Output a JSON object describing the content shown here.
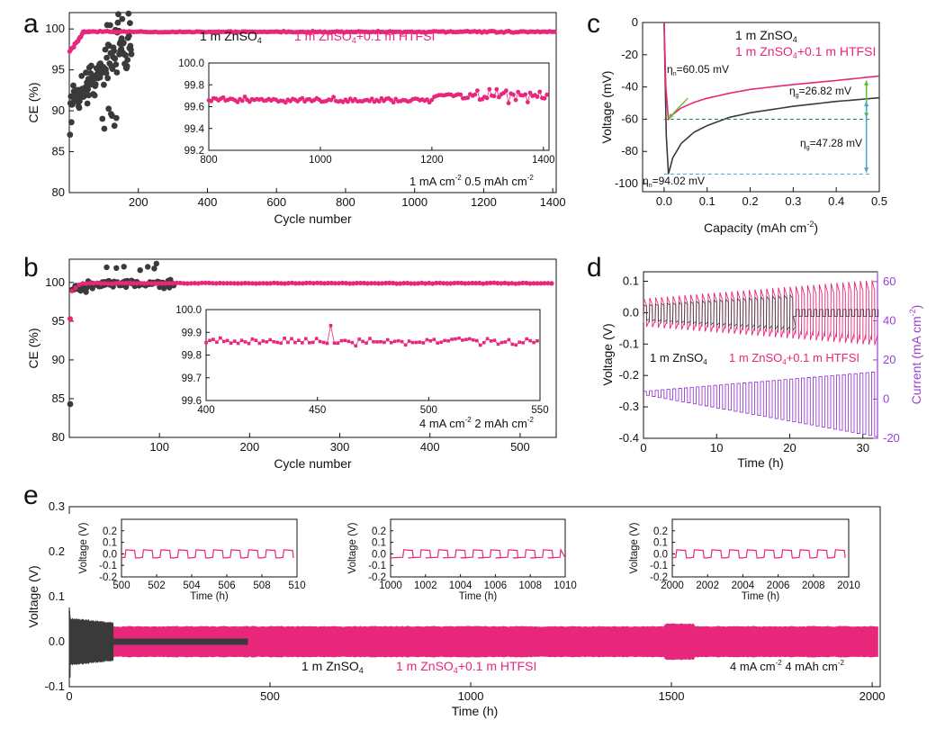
{
  "panels": {
    "a": {
      "label": "a"
    },
    "b": {
      "label": "b"
    },
    "c": {
      "label": "c"
    },
    "d": {
      "label": "d"
    },
    "e": {
      "label": "e"
    }
  },
  "colors": {
    "zn": "#3a3a3a",
    "htfsi": "#e8267a",
    "current": "#9a3fd6",
    "green": "#5fbf2f",
    "teal": "#4aa6c8",
    "dash_green": "#1a8a3a"
  },
  "chart_data": [
    {
      "id": "a",
      "type": "scatter",
      "xlabel": "Cycle number",
      "ylabel": "CE (%)",
      "xlim": [
        0,
        1410
      ],
      "ylim": [
        80,
        102
      ],
      "xticks": [
        200,
        400,
        600,
        800,
        1000,
        1200,
        1400
      ],
      "yticks": [
        80,
        85,
        90,
        95,
        100
      ],
      "legend": [
        "1 m ZnSO4",
        "1 m ZnSO4+0.1 m HTFSI"
      ],
      "legend_main": "1 m ZnSO",
      "legend_sub": "4",
      "legend2_main": "1 m ZnSO",
      "legend2_sub": "4",
      "legend2_rest": "+0.1 m HTFSI",
      "series": [
        {
          "name": "1 m ZnSO4",
          "description": "scattered CE 86–102 % for cycles 1–180, rising trend"
        },
        {
          "name": "1 m ZnSO4+0.1 m HTFSI",
          "values_approx": "~97.5 % at start, ~99.6–99.7 % stable to cycle 1400"
        }
      ],
      "inset": {
        "xlim": [
          800,
          1410
        ],
        "ylim": [
          99.2,
          100.0
        ],
        "xticks": [
          800,
          1000,
          1200,
          1400
        ],
        "yticks": [
          99.2,
          99.4,
          99.6,
          99.8,
          100.0
        ],
        "mean": 99.66
      },
      "condition_part1": "1 mA cm",
      "condition_sup1": "-2",
      "condition_part2": "  0.5 mAh cm",
      "condition_sup2": "-2"
    },
    {
      "id": "b",
      "type": "scatter",
      "xlabel": "Cycle number",
      "ylabel": "CE (%)",
      "xlim": [
        0,
        540
      ],
      "ylim": [
        80,
        103
      ],
      "xticks": [
        100,
        200,
        300,
        400,
        500
      ],
      "yticks": [
        80,
        85,
        90,
        95,
        100
      ],
      "series": [
        {
          "name": "1 m ZnSO4",
          "description": "84.3 % first cycle, ~99–101.5 % through cycle 115"
        },
        {
          "name": "1 m ZnSO4+0.1 m HTFSI",
          "values_approx": "95.3 % first cycle then ~99.9 % to cycle 540"
        }
      ],
      "inset": {
        "xlim": [
          400,
          550
        ],
        "ylim": [
          99.6,
          100.0
        ],
        "xticks": [
          400,
          450,
          500,
          550
        ],
        "yticks": [
          99.6,
          99.7,
          99.8,
          99.9,
          100.0
        ],
        "mean": 99.86
      },
      "condition_part1": "4 mA cm",
      "condition_sup1": "-2",
      "condition_part2": "  2 mAh cm",
      "condition_sup2": "-2"
    },
    {
      "id": "c",
      "type": "line",
      "xlabel_main": "Capacity (mAh cm",
      "xlabel_sup": "-2",
      "xlabel_end": ")",
      "ylabel": "Voltage (mV)",
      "xlim": [
        -0.05,
        0.5
      ],
      "ylim": [
        -105,
        0
      ],
      "xticks": [
        0.0,
        0.1,
        0.2,
        0.3,
        0.4,
        0.5
      ],
      "yticks": [
        -100,
        -80,
        -60,
        -40,
        -20,
        0
      ],
      "series": [
        {
          "name": "1 m ZnSO4",
          "x": [
            0.0,
            0.005,
            0.01,
            0.02,
            0.04,
            0.07,
            0.1,
            0.15,
            0.2,
            0.3,
            0.4,
            0.5
          ],
          "y": [
            0,
            -70,
            -94.02,
            -84,
            -75,
            -68,
            -64,
            -59,
            -56,
            -52,
            -49,
            -46.7
          ]
        },
        {
          "name": "1 m ZnSO4+0.1 m HTFSI",
          "x": [
            0.0,
            0.004,
            0.01,
            0.02,
            0.04,
            0.07,
            0.1,
            0.15,
            0.2,
            0.3,
            0.4,
            0.5
          ],
          "y": [
            0,
            -40,
            -60.05,
            -57,
            -53,
            -49.5,
            -47,
            -44,
            -41.5,
            -38.5,
            -36,
            -33.2
          ]
        }
      ],
      "legend_line1_main": "1 m ZnSO",
      "legend_line1_sub": "4",
      "legend_line2_main": "1 m ZnSO",
      "legend_line2_sub": "4",
      "legend_line2_rest": "+0.1 m HTFSI",
      "ann_eta_n_pink": {
        "sym": "η",
        "sub": "n",
        "val": "=60.05 mV"
      },
      "ann_eta_g_pink": {
        "sym": "η",
        "sub": "g",
        "val": "=26.82 mV"
      },
      "ann_eta_g_black": {
        "sym": "η",
        "sub": "g",
        "val": "=47.28 mV"
      },
      "ann_eta_n_black": {
        "sym": "η",
        "sub": "n",
        "val": "=94.02 mV"
      }
    },
    {
      "id": "d",
      "type": "line",
      "xlabel": "Time (h)",
      "ylabel": "Voltage (V)",
      "ylabel_right_main": "Current (mA cm",
      "ylabel_right_sup": "-2",
      "ylabel_right_end": ")",
      "xlim": [
        0,
        32
      ],
      "ylim": [
        -0.4,
        0.13
      ],
      "ylim_right": [
        -20,
        65
      ],
      "xticks": [
        0,
        10,
        20,
        30
      ],
      "yticks": [
        -0.4,
        -0.3,
        -0.2,
        -0.1,
        0.0,
        0.1
      ],
      "yticks_right": [
        -20,
        0,
        20,
        40,
        60
      ],
      "series": [
        {
          "name": "1 m ZnSO4",
          "description": "square-wave voltage, amplitude grows with current; short-circuits (~0.0 V flat) after ~20.5 h"
        },
        {
          "name": "1 m ZnSO4+0.1 m HTFSI",
          "description": "square-wave voltage, amplitude grows with current to 32 h"
        },
        {
          "name": "Current",
          "description": "stepped current, amplitude increasing linearly from 2 to ~32 mA cm-2"
        }
      ],
      "legend1_main": "1 m ZnSO",
      "legend1_sub": "4",
      "legend2_main": "1 m ZnSO",
      "legend2_sub": "4",
      "legend2_rest": "+0.1 m HTFSI"
    },
    {
      "id": "e",
      "type": "line",
      "xlabel": "Time (h)",
      "ylabel": "Voltage (V)",
      "xlim": [
        0,
        2020
      ],
      "ylim": [
        -0.1,
        0.3
      ],
      "xticks": [
        0,
        500,
        1000,
        1500,
        2000
      ],
      "yticks": [
        -0.1,
        0.0,
        0.1,
        0.2,
        0.3
      ],
      "series": [
        {
          "name": "1 m ZnSO4",
          "description": "band ±0.05 V, short-circuit after ~110 h, data ends ~445 h"
        },
        {
          "name": "1 m ZnSO4+0.1 m HTFSI",
          "description": "stable polarization ±0.03–0.04 V up to 2020 h"
        }
      ],
      "legend1_main": "1 m ZnSO",
      "legend1_sub": "4",
      "legend2_main": "1 m ZnSO",
      "legend2_sub": "4",
      "legend2_rest": "+0.1 m HTFSI",
      "condition_part1": "4 mA cm",
      "condition_sup1": "-2",
      "condition_part2": "  4 mAh cm",
      "condition_sup2": "-2",
      "insets": [
        {
          "xlim": [
            500,
            510
          ],
          "xticks": [
            500,
            502,
            504,
            506,
            508,
            510
          ],
          "yticks": [
            -0.2,
            -0.1,
            0.0,
            0.1,
            0.2
          ],
          "ylabel": "Voltage (V)",
          "xlabel": "Time (h)"
        },
        {
          "xlim": [
            1000,
            1010
          ],
          "xticks": [
            1000,
            1002,
            1004,
            1006,
            1008,
            1010
          ],
          "yticks": [
            -0.2,
            -0.1,
            0.0,
            0.1,
            0.2
          ],
          "ylabel": "Voltage (V)",
          "xlabel": "Time (h)"
        },
        {
          "xlim": [
            2000,
            2010
          ],
          "xticks": [
            2000,
            2002,
            2004,
            2006,
            2008,
            2010
          ],
          "yticks": [
            -0.2,
            -0.1,
            0.0,
            0.1,
            0.2
          ],
          "ylabel": "Voltage (V)",
          "xlabel": "Time (h)"
        }
      ]
    }
  ]
}
